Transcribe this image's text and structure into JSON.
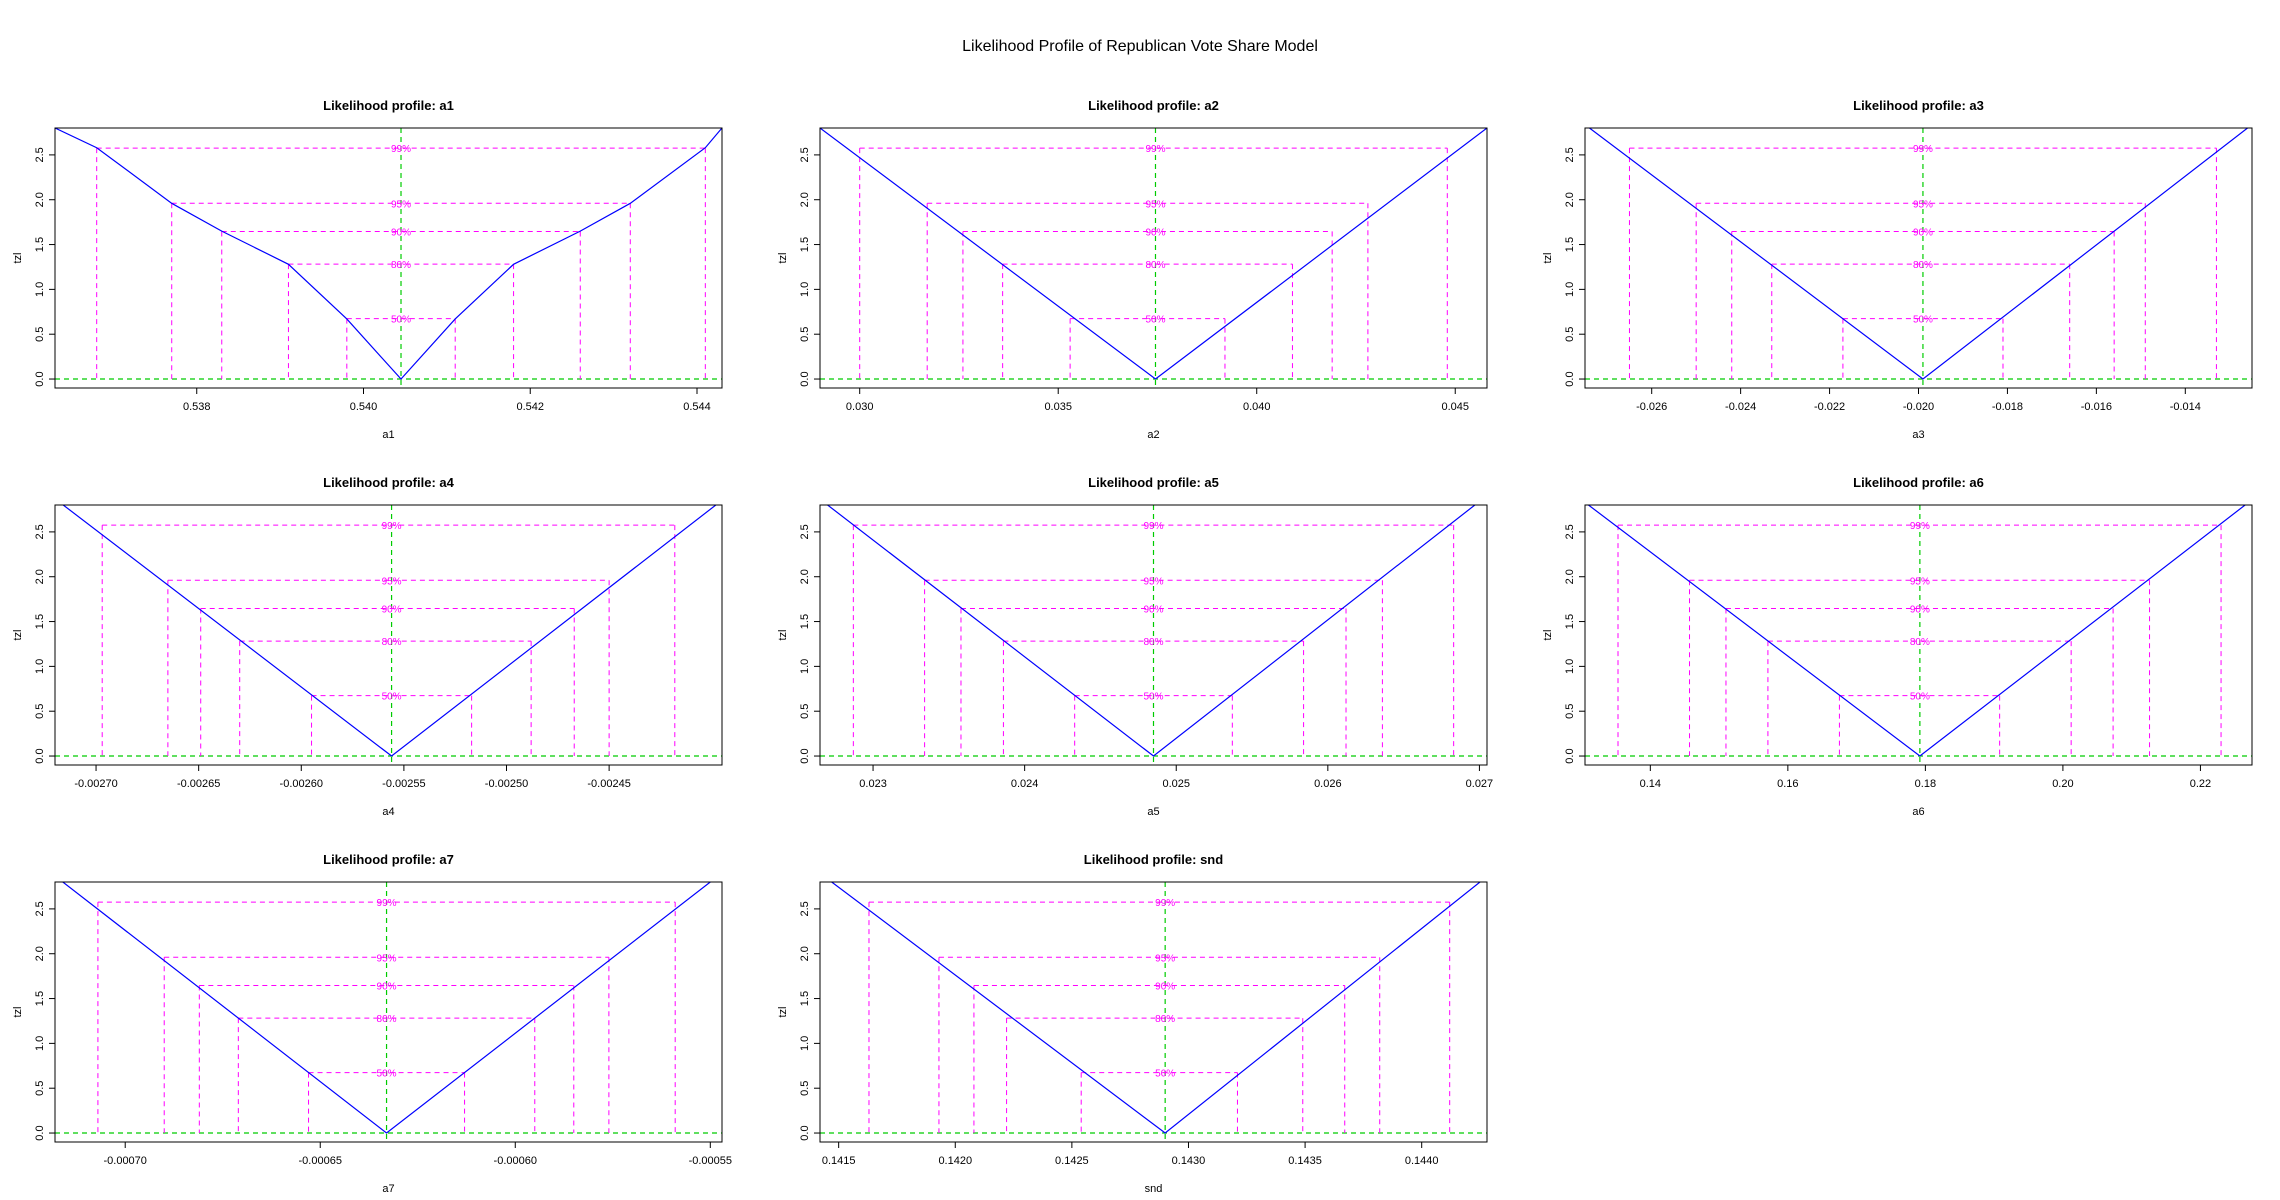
{
  "page": {
    "title": "Likelihood Profile of Republican Vote Share Model"
  },
  "colors": {
    "curve": "#0000ff",
    "intervals": "#ff00ff",
    "reference": "#00cc00",
    "axis": "#000000"
  },
  "chart_data": [
    {
      "type": "line",
      "param": "a1",
      "title": "Likelihood profile: a1",
      "xlabel": "a1",
      "ylabel": "tzl",
      "xlim": [
        0.5363,
        0.5443
      ],
      "ylim": [
        -0.1,
        2.8
      ],
      "xticks": [
        "0.538",
        "0.540",
        "0.542",
        "0.544"
      ],
      "yticks": [
        "0.0",
        "0.5",
        "1.0",
        "1.5",
        "2.0",
        "2.5"
      ],
      "mle": 0.54045,
      "curve": {
        "x": [
          0.5363,
          0.5368,
          0.5377,
          0.5383,
          0.5391,
          0.5398,
          0.54045,
          0.5411,
          0.5418,
          0.5426,
          0.5432,
          0.5441,
          0.5443
        ],
        "y": [
          2.8,
          2.58,
          1.96,
          1.65,
          1.28,
          0.67,
          0.0,
          0.67,
          1.28,
          1.65,
          1.96,
          2.58,
          2.8
        ]
      },
      "levels": [
        {
          "label": "50%",
          "z": 0.674,
          "lower": 0.5398,
          "upper": 0.5411
        },
        {
          "label": "80%",
          "z": 1.282,
          "lower": 0.5391,
          "upper": 0.5418
        },
        {
          "label": "90%",
          "z": 1.645,
          "lower": 0.5383,
          "upper": 0.5426
        },
        {
          "label": "95%",
          "z": 1.96,
          "lower": 0.5377,
          "upper": 0.5432
        },
        {
          "label": "99%",
          "z": 2.576,
          "lower": 0.5368,
          "upper": 0.5441
        }
      ]
    },
    {
      "type": "line",
      "param": "a2",
      "title": "Likelihood profile: a2",
      "xlabel": "a2",
      "ylabel": "tzl",
      "xlim": [
        0.029,
        0.0458
      ],
      "ylim": [
        -0.1,
        2.8
      ],
      "xticks": [
        "0.030",
        "0.035",
        "0.040",
        "0.045"
      ],
      "yticks": [
        "0.0",
        "0.5",
        "1.0",
        "1.5",
        "2.0",
        "2.5"
      ],
      "mle": 0.03745,
      "curve": {
        "x": [
          0.029,
          0.03745,
          0.0458
        ],
        "y": [
          2.8,
          0.0,
          2.8
        ]
      },
      "levels": [
        {
          "label": "50%",
          "z": 0.674,
          "lower": 0.0353,
          "upper": 0.0392
        },
        {
          "label": "80%",
          "z": 1.282,
          "lower": 0.0336,
          "upper": 0.0409
        },
        {
          "label": "90%",
          "z": 1.645,
          "lower": 0.0326,
          "upper": 0.0419
        },
        {
          "label": "95%",
          "z": 1.96,
          "lower": 0.0317,
          "upper": 0.0428
        },
        {
          "label": "99%",
          "z": 2.576,
          "lower": 0.03,
          "upper": 0.0448
        }
      ]
    },
    {
      "type": "line",
      "param": "a3",
      "title": "Likelihood profile: a3",
      "xlabel": "a3",
      "ylabel": "tzl",
      "xlim": [
        -0.0275,
        -0.0125
      ],
      "ylim": [
        -0.1,
        2.8
      ],
      "xticks": [
        "-0.026",
        "-0.024",
        "-0.022",
        "-0.020",
        "-0.018",
        "-0.016",
        "-0.014"
      ],
      "yticks": [
        "0.0",
        "0.5",
        "1.0",
        "1.5",
        "2.0",
        "2.5"
      ],
      "mle": -0.0199,
      "curve": {
        "x": [
          -0.0274,
          -0.0199,
          -0.0126
        ],
        "y": [
          2.8,
          0.0,
          2.8
        ]
      },
      "levels": [
        {
          "label": "50%",
          "z": 0.674,
          "lower": -0.0217,
          "upper": -0.0181
        },
        {
          "label": "80%",
          "z": 1.282,
          "lower": -0.0233,
          "upper": -0.0166
        },
        {
          "label": "90%",
          "z": 1.645,
          "lower": -0.0242,
          "upper": -0.0156
        },
        {
          "label": "95%",
          "z": 1.96,
          "lower": -0.025,
          "upper": -0.0149
        },
        {
          "label": "99%",
          "z": 2.576,
          "lower": -0.0265,
          "upper": -0.0133
        }
      ]
    },
    {
      "type": "line",
      "param": "a4",
      "title": "Likelihood profile: a4",
      "xlabel": "a4",
      "ylabel": "tzl",
      "xlim": [
        -0.00272,
        -0.002395
      ],
      "ylim": [
        -0.1,
        2.8
      ],
      "xticks": [
        "-0.00270",
        "-0.00265",
        "-0.00260",
        "-0.00255",
        "-0.00250",
        "-0.00245"
      ],
      "yticks": [
        "0.0",
        "0.5",
        "1.0",
        "1.5",
        "2.0",
        "2.5"
      ],
      "mle": -0.002556,
      "curve": {
        "x": [
          -0.002716,
          -0.002556,
          -0.002398
        ],
        "y": [
          2.8,
          0.0,
          2.8
        ]
      },
      "levels": [
        {
          "label": "50%",
          "z": 0.674,
          "lower": -0.002595,
          "upper": -0.002517
        },
        {
          "label": "80%",
          "z": 1.282,
          "lower": -0.00263,
          "upper": -0.002488
        },
        {
          "label": "90%",
          "z": 1.645,
          "lower": -0.002649,
          "upper": -0.002467
        },
        {
          "label": "95%",
          "z": 1.96,
          "lower": -0.002665,
          "upper": -0.00245
        },
        {
          "label": "99%",
          "z": 2.576,
          "lower": -0.002697,
          "upper": -0.002418
        }
      ]
    },
    {
      "type": "line",
      "param": "a5",
      "title": "Likelihood profile: a5",
      "xlabel": "a5",
      "ylabel": "tzl",
      "xlim": [
        0.02265,
        0.02705
      ],
      "ylim": [
        -0.1,
        2.8
      ],
      "xticks": [
        "0.023",
        "0.024",
        "0.025",
        "0.026",
        "0.027"
      ],
      "yticks": [
        "0.0",
        "0.5",
        "1.0",
        "1.5",
        "2.0",
        "2.5"
      ],
      "mle": 0.02485,
      "curve": {
        "x": [
          0.0227,
          0.02485,
          0.02697
        ],
        "y": [
          2.8,
          0.0,
          2.8
        ]
      },
      "levels": [
        {
          "label": "50%",
          "z": 0.674,
          "lower": 0.02433,
          "upper": 0.02537
        },
        {
          "label": "80%",
          "z": 1.282,
          "lower": 0.02386,
          "upper": 0.02584
        },
        {
          "label": "90%",
          "z": 1.645,
          "lower": 0.02358,
          "upper": 0.02612
        },
        {
          "label": "95%",
          "z": 1.96,
          "lower": 0.02334,
          "upper": 0.02636
        },
        {
          "label": "99%",
          "z": 2.576,
          "lower": 0.02287,
          "upper": 0.02683
        }
      ]
    },
    {
      "type": "line",
      "param": "a6",
      "title": "Likelihood profile: a6",
      "xlabel": "a6",
      "ylabel": "tzl",
      "xlim": [
        0.1305,
        0.2275
      ],
      "ylim": [
        -0.1,
        2.8
      ],
      "xticks": [
        "0.14",
        "0.16",
        "0.18",
        "0.20",
        "0.22"
      ],
      "yticks": [
        "0.0",
        "0.5",
        "1.0",
        "1.5",
        "2.0",
        "2.5"
      ],
      "mle": 0.1792,
      "curve": {
        "x": [
          0.131,
          0.1792,
          0.2265
        ],
        "y": [
          2.8,
          0.0,
          2.8
        ]
      },
      "levels": [
        {
          "label": "50%",
          "z": 0.674,
          "lower": 0.1675,
          "upper": 0.1908
        },
        {
          "label": "80%",
          "z": 1.282,
          "lower": 0.1571,
          "upper": 0.2012
        },
        {
          "label": "90%",
          "z": 1.645,
          "lower": 0.151,
          "upper": 0.2073
        },
        {
          "label": "95%",
          "z": 1.96,
          "lower": 0.1457,
          "upper": 0.2126
        },
        {
          "label": "99%",
          "z": 2.576,
          "lower": 0.1353,
          "upper": 0.223
        }
      ]
    },
    {
      "type": "line",
      "param": "a7",
      "title": "Likelihood profile: a7",
      "xlabel": "a7",
      "ylabel": "tzl",
      "xlim": [
        -0.000718,
        -0.000547
      ],
      "ylim": [
        -0.1,
        2.8
      ],
      "xticks": [
        "-0.00070",
        "-0.00065",
        "-0.00060",
        "-0.00055"
      ],
      "yticks": [
        "0.0",
        "0.5",
        "1.0",
        "1.5",
        "2.0",
        "2.5"
      ],
      "mle": -0.000633,
      "curve": {
        "x": [
          -0.000716,
          -0.000633,
          -0.00055
        ],
        "y": [
          2.8,
          0.0,
          2.8
        ]
      },
      "levels": [
        {
          "label": "50%",
          "z": 0.674,
          "lower": -0.000653,
          "upper": -0.000613
        },
        {
          "label": "80%",
          "z": 1.282,
          "lower": -0.000671,
          "upper": -0.000595
        },
        {
          "label": "90%",
          "z": 1.645,
          "lower": -0.000681,
          "upper": -0.000585
        },
        {
          "label": "95%",
          "z": 1.96,
          "lower": -0.00069,
          "upper": -0.000576
        },
        {
          "label": "99%",
          "z": 2.576,
          "lower": -0.000707,
          "upper": -0.000559
        }
      ]
    },
    {
      "type": "line",
      "param": "snd",
      "title": "Likelihood profile: snd",
      "xlabel": "snd",
      "ylabel": "tzl",
      "xlim": [
        0.14142,
        0.14428
      ],
      "ylim": [
        -0.1,
        2.8
      ],
      "xticks": [
        "0.1415",
        "0.1420",
        "0.1425",
        "0.1430",
        "0.1435",
        "0.1440"
      ],
      "yticks": [
        "0.0",
        "0.5",
        "1.0",
        "1.5",
        "2.0",
        "2.5"
      ],
      "mle": 0.1429,
      "curve": {
        "x": [
          0.14147,
          0.1429,
          0.14425
        ],
        "y": [
          2.8,
          0.0,
          2.8
        ]
      },
      "levels": [
        {
          "label": "50%",
          "z": 0.674,
          "lower": 0.14254,
          "upper": 0.14321
        },
        {
          "label": "80%",
          "z": 1.282,
          "lower": 0.14222,
          "upper": 0.14349
        },
        {
          "label": "90%",
          "z": 1.645,
          "lower": 0.14208,
          "upper": 0.14367
        },
        {
          "label": "95%",
          "z": 1.96,
          "lower": 0.14193,
          "upper": 0.14382
        },
        {
          "label": "99%",
          "z": 2.576,
          "lower": 0.14163,
          "upper": 0.14412
        }
      ]
    }
  ]
}
